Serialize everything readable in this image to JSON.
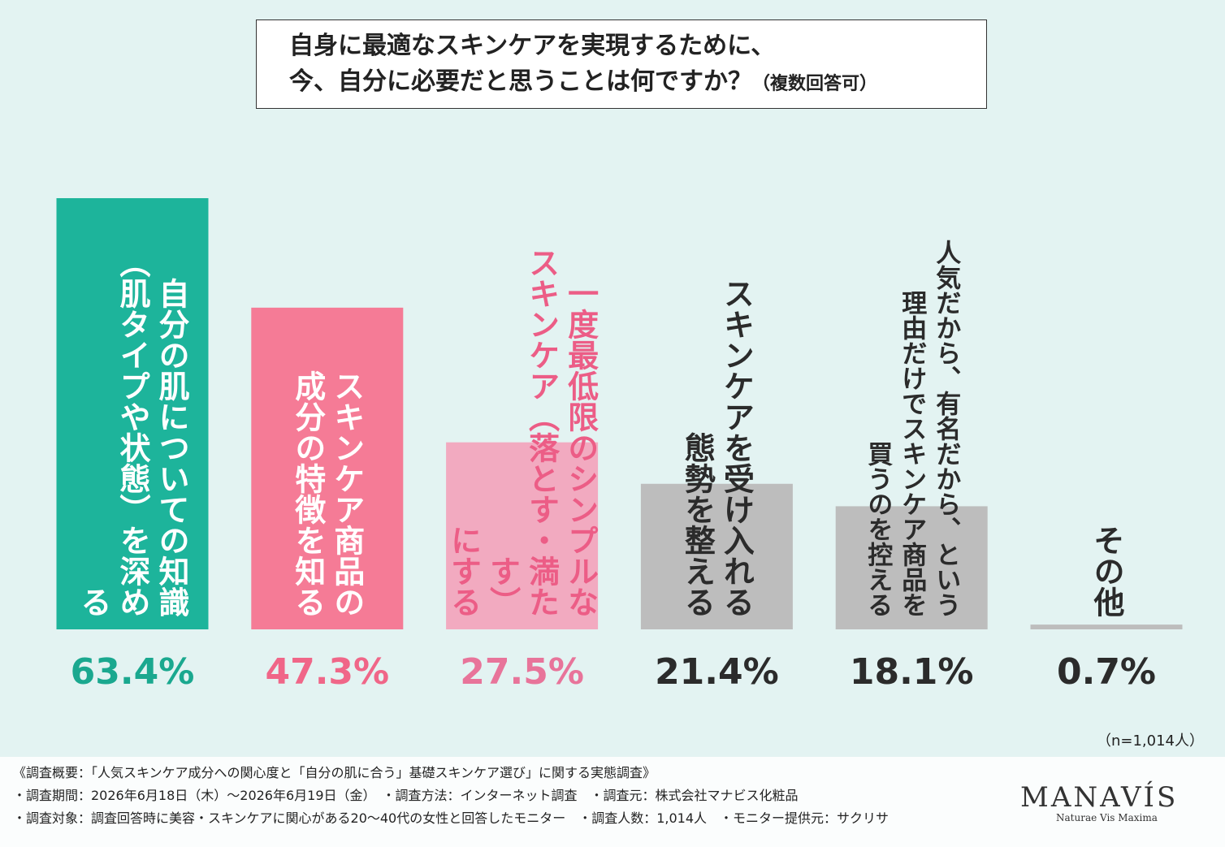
{
  "chart_data": {
    "type": "bar",
    "title": [
      "自身に最適なスキンケアを実現するために、",
      "今、自分に必要だと思うことは何ですか？"
    ],
    "subtitle": "（複数回答可）",
    "categories": [
      [
        "自分の肌についての知識",
        "（肌タイプや状態）を深める"
      ],
      [
        "スキンケア商品の",
        "成分の特徴を知る"
      ],
      [
        "一度最低限のシンプルな",
        "スキンケア（落とす・満たす）",
        "にする"
      ],
      [
        "スキンケアを受け入れる",
        "態勢を整える"
      ],
      [
        "人気だから、有名だから、という",
        "理由だけでスキンケア商品を",
        "買うのを控える"
      ],
      [
        "その他"
      ]
    ],
    "values": [
      63.4,
      47.3,
      27.5,
      21.4,
      18.1,
      0.7
    ],
    "value_labels": [
      "63.4%",
      "47.3%",
      "27.5%",
      "21.4%",
      "18.1%",
      "0.7%"
    ],
    "colors": [
      "#1db49b",
      "#f57b96",
      "#f2aac0",
      "#bdbdbd",
      "#bdbdbd",
      "#bdbdbd"
    ],
    "label_colors": [
      "#1aa88f",
      "#f06688",
      "#e8749a",
      "#2b2b2b",
      "#2b2b2b",
      "#2b2b2b"
    ],
    "text_colors": [
      "#ffffff",
      "#ffffff",
      "#ec5d86",
      "#2b2b2b",
      "#2b2b2b",
      "#2b2b2b"
    ],
    "note": "（n=1,014人）",
    "footer": [
      "《調査概要：「人気スキンケア成分への関心度と「自分の肌に合う」基礎スキンケア選び」に関する実態調査》",
      "・調査期間：2026年6月18日（木）～2026年6月19日（金）　・調査方法：インターネット調査　・調査元：株式会社マナビス化粧品",
      "・調査対象：調査回答時に美容・スキンケアに関心がある20～40代の女性と回答したモニター　・調査人数：1,014人　・モニター提供元：サクリサ"
    ],
    "brand": "MANAVÍS",
    "brand_tagline": "Naturae Vis Maxima"
  }
}
